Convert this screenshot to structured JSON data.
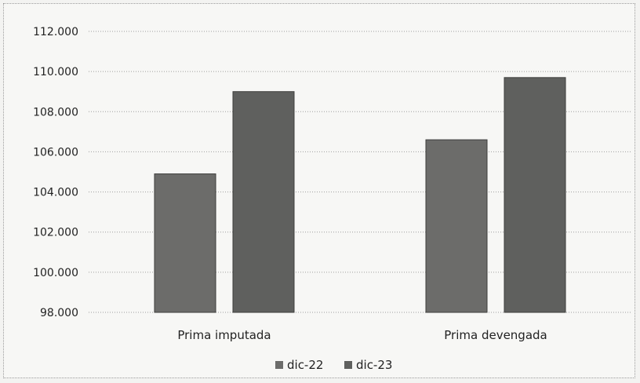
{
  "chart_data": {
    "type": "bar",
    "title": "",
    "xlabel": "",
    "ylabel": "",
    "categories": [
      "Prima imputada",
      "Prima devengada"
    ],
    "series": [
      {
        "name": "dic-22",
        "values": [
          104900,
          106600
        ],
        "color": "#6c6c6a"
      },
      {
        "name": "dic-23",
        "values": [
          109000,
          109700
        ],
        "color": "#5f605e"
      }
    ],
    "ylim": [
      98000,
      112000
    ],
    "yticks": [
      98000,
      100000,
      102000,
      104000,
      106000,
      108000,
      110000,
      112000
    ],
    "ytick_labels": [
      "98.000",
      "100.000",
      "102.000",
      "104.000",
      "106.000",
      "108.000",
      "110.000",
      "112.000"
    ],
    "grid": true,
    "legend_position": "bottom"
  }
}
